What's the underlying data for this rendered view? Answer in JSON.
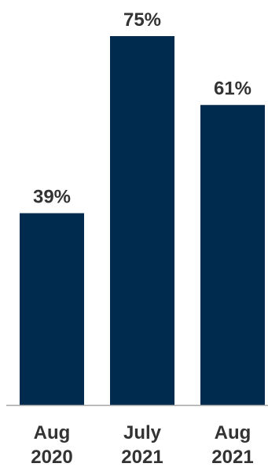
{
  "chart_data": {
    "type": "bar",
    "categories": [
      "Aug 2020",
      "July 2021",
      "Aug 2021"
    ],
    "category_lines": [
      [
        "Aug",
        "2020"
      ],
      [
        "July",
        "2021"
      ],
      [
        "Aug",
        "2021"
      ]
    ],
    "values": [
      39,
      75,
      61
    ],
    "value_labels": [
      "39%",
      "75%",
      "61%"
    ],
    "ylim": [
      0,
      75
    ],
    "unit": "%",
    "bar_color": "#002a4e",
    "label_color": "#333333",
    "baseline_color": "#a6a6a6",
    "grid": false,
    "legend": "none"
  }
}
